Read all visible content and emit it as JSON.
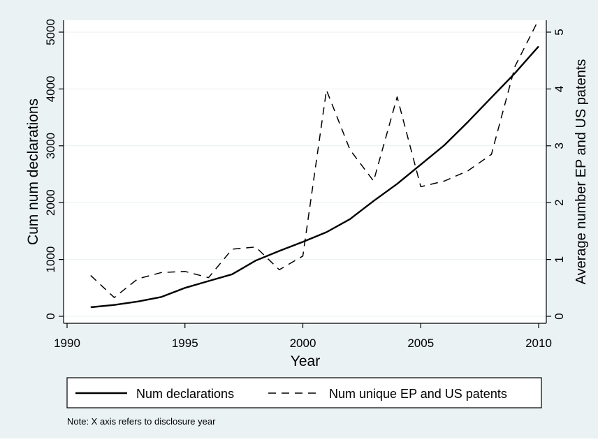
{
  "chart_data": {
    "type": "line",
    "x": [
      1991,
      1992,
      1993,
      1994,
      1995,
      1996,
      1997,
      1998,
      1999,
      2000,
      2001,
      2002,
      2003,
      2004,
      2005,
      2006,
      2007,
      2008,
      2009,
      2010
    ],
    "xlabel": "Year",
    "xlim": [
      1990,
      2010
    ],
    "xticks": [
      1990,
      1995,
      2000,
      2005,
      2010
    ],
    "ylabel_left": "Cum num declarations",
    "ylim_left": [
      0,
      5000
    ],
    "yticks_left": [
      0,
      1000,
      2000,
      3000,
      4000,
      5000
    ],
    "ylabel_right": "Average number EP and US patents",
    "ylim_right": [
      0,
      5
    ],
    "yticks_right": [
      0,
      1,
      2,
      3,
      4,
      5
    ],
    "grid": true,
    "legend_position": "bottom",
    "series": [
      {
        "name": "Num declarations",
        "axis": "left",
        "style": "solid",
        "values": [
          160,
          200,
          260,
          340,
          500,
          620,
          740,
          980,
          1150,
          1310,
          1480,
          1710,
          2030,
          2330,
          2670,
          3010,
          3420,
          3850,
          4280,
          4750
        ]
      },
      {
        "name": "Num unique EP and US patents",
        "axis": "right",
        "style": "dashed",
        "values": [
          0.72,
          0.33,
          0.66,
          0.77,
          0.79,
          0.68,
          1.18,
          1.22,
          0.82,
          1.06,
          3.98,
          2.93,
          2.38,
          3.86,
          2.28,
          2.38,
          2.56,
          2.85,
          4.4,
          5.22
        ]
      }
    ]
  },
  "note": "Note: X axis refers to disclosure year",
  "colors": {
    "outer_background": "#eaf2f3",
    "plot_background": "#ffffff",
    "grid": "#e8eff1",
    "line": "#000000"
  }
}
